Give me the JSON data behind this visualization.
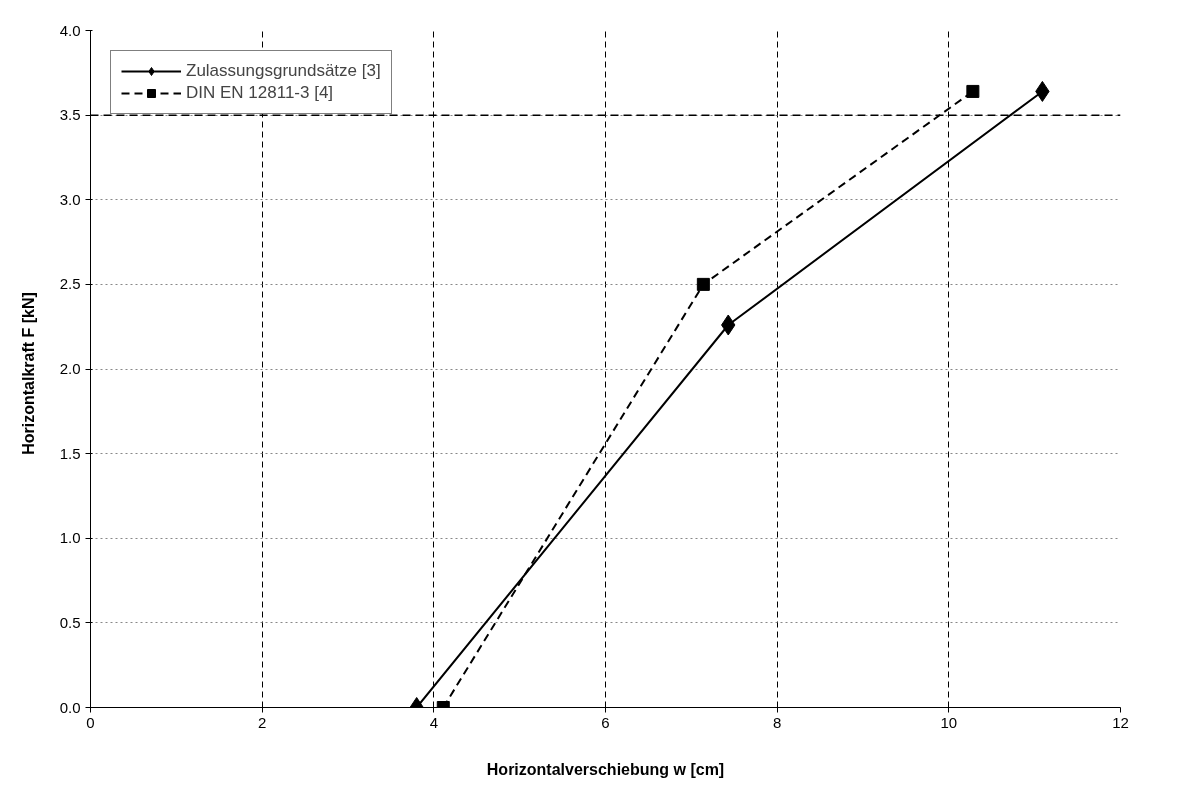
{
  "chart_data": {
    "type": "line",
    "xlabel": "Horizontalverschiebung w [cm]",
    "ylabel": "Horizontalkraft F   [kN]",
    "xlim": [
      0,
      12
    ],
    "xticks": [
      0,
      2,
      4,
      6,
      8,
      10,
      12
    ],
    "ylim": [
      0,
      4
    ],
    "yticks": [
      {
        "value": 0,
        "label": "0.0"
      },
      {
        "value": 0.5,
        "label": "0.5"
      },
      {
        "value": 1,
        "label": "1.0"
      },
      {
        "value": 1.5,
        "label": "1.5"
      },
      {
        "value": 2,
        "label": "2.0"
      },
      {
        "value": 2.5,
        "label": "2.5"
      },
      {
        "value": 3,
        "label": "3.0"
      },
      {
        "value": 3.5,
        "label": "3.5"
      },
      {
        "value": 4,
        "label": "4.0"
      }
    ],
    "grid": true,
    "legend": "top left",
    "ref_lines": [
      {
        "axis": "y",
        "value": 3.5,
        "label": null,
        "color": "#000000",
        "line_style": "dashed"
      }
    ],
    "series": [
      {
        "name": "Zulassungsgrundsätze [3]",
        "color": "#000000",
        "marker": "diamond",
        "line_style": "solid",
        "x": [
          3.8,
          7.43,
          11.09
        ],
        "values": [
          0,
          2.26,
          3.64
        ]
      },
      {
        "name": "DIN EN 12811-3 [4]",
        "color": "#000000",
        "marker": "square",
        "line_style": "dashed",
        "x": [
          4.11,
          7.14,
          10.28
        ],
        "values": [
          0,
          2.5,
          3.64
        ]
      }
    ]
  }
}
